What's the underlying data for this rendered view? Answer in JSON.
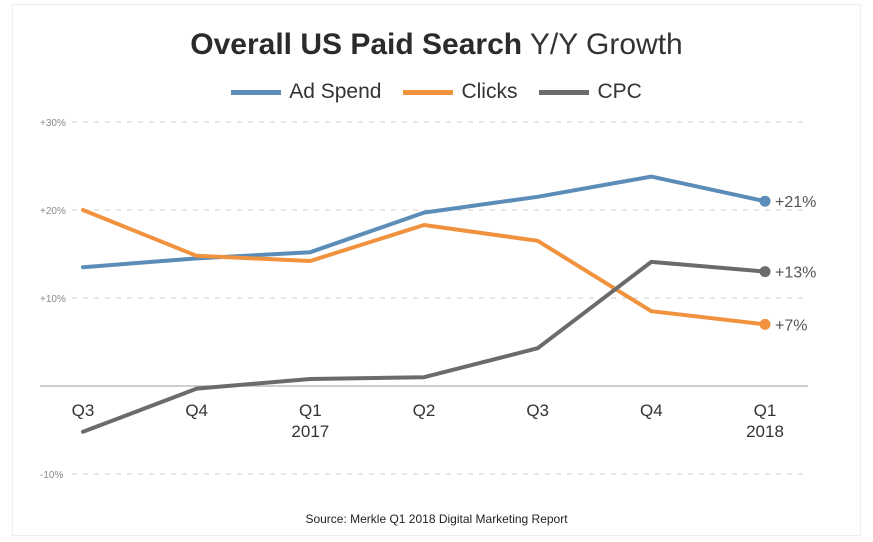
{
  "chart_data": {
    "type": "line",
    "title": "Overall US Paid Search",
    "title_suffix": "Y/Y Growth",
    "categories": [
      {
        "top": "Q3",
        "bottom": ""
      },
      {
        "top": "Q4",
        "bottom": ""
      },
      {
        "top": "Q1",
        "bottom": "2017"
      },
      {
        "top": "Q2",
        "bottom": ""
      },
      {
        "top": "Q3",
        "bottom": ""
      },
      {
        "top": "Q4",
        "bottom": ""
      },
      {
        "top": "Q1",
        "bottom": "2018"
      }
    ],
    "series": [
      {
        "name": "Ad Spend",
        "color": "#5b8db8",
        "values": [
          13.5,
          14.5,
          15.2,
          19.7,
          21.5,
          23.8,
          21
        ],
        "end_label": "+21%"
      },
      {
        "name": "Clicks",
        "color": "#f0923e",
        "values": [
          20,
          14.8,
          14.2,
          18.3,
          16.5,
          8.5,
          7
        ],
        "end_label": "+7%"
      },
      {
        "name": "CPC",
        "color": "#6b6b6b",
        "values": [
          -5.2,
          -0.3,
          0.8,
          1.0,
          4.3,
          14.1,
          13
        ],
        "end_label": "+13%"
      }
    ],
    "yticks": [
      {
        "value": 30,
        "label": "+30%"
      },
      {
        "value": 20,
        "label": "+20%"
      },
      {
        "value": 10,
        "label": "+10%"
      },
      {
        "value": -10,
        "label": "-10%"
      }
    ],
    "ylim": [
      -10,
      30
    ],
    "grid": true,
    "legend_position": "top-center"
  },
  "source": "Source: Merkle Q1 2018 Digital Marketing Report"
}
